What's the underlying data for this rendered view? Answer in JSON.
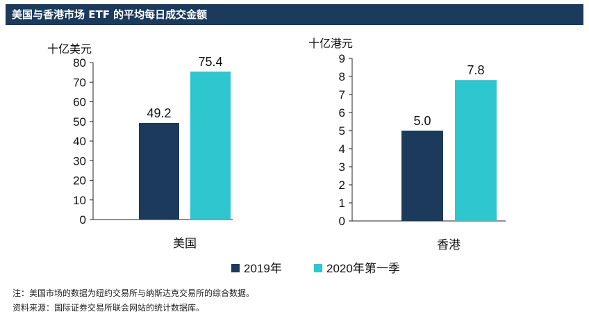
{
  "title": "美国与香港市场 ETF 的平均每日成交金额",
  "chart_data": [
    {
      "type": "bar",
      "ylabel": "十亿美元",
      "categories": [
        "美国"
      ],
      "ylim": [
        0,
        80
      ],
      "yticks": [
        0,
        10,
        20,
        30,
        40,
        50,
        60,
        70,
        80
      ],
      "series": [
        {
          "name": "2019年",
          "values": [
            49.2
          ],
          "labels": [
            "49.2"
          ]
        },
        {
          "name": "2020年第一季",
          "values": [
            75.4
          ],
          "labels": [
            "75.4"
          ]
        }
      ]
    },
    {
      "type": "bar",
      "ylabel": "十亿港元",
      "categories": [
        "香港"
      ],
      "ylim": [
        0,
        9
      ],
      "yticks": [
        0,
        1,
        2,
        3,
        4,
        5,
        6,
        7,
        8,
        9
      ],
      "series": [
        {
          "name": "2019年",
          "values": [
            5.0
          ],
          "labels": [
            "5.0"
          ]
        },
        {
          "name": "2020年第一季",
          "values": [
            7.8
          ],
          "labels": [
            "7.8"
          ]
        }
      ]
    }
  ],
  "legend": [
    {
      "label": "2019年",
      "color": "#1b3a5c"
    },
    {
      "label": "2020年第一季",
      "color": "#2ec6cf"
    }
  ],
  "notes": [
    "注：美国市场的数据为纽约交易所与纳斯达克交易所的综合数据。",
    "资料来源：国际证券交易所联会网站的统计数据库。"
  ]
}
